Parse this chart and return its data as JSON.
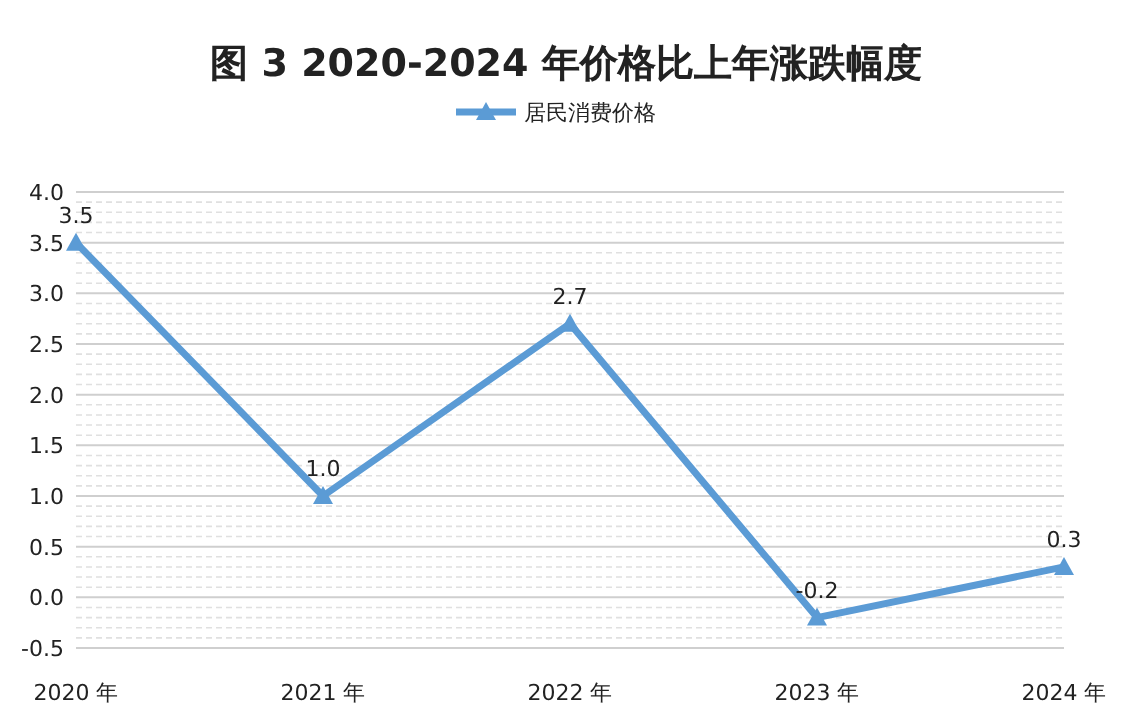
{
  "chart_data": {
    "type": "line",
    "title": "图 3  2020-2024 年价格比上年涨跌幅度",
    "categories": [
      "2020 年",
      "2021 年",
      "2022 年",
      "2023 年",
      "2024 年"
    ],
    "series": [
      {
        "name": "居民消费价格",
        "color": "#5b9bd5",
        "values": [
          3.5,
          1.0,
          2.7,
          -0.2,
          0.3
        ],
        "value_labels": [
          "3.5",
          "1.0",
          "2.7",
          "-0.2",
          "0.3"
        ]
      }
    ],
    "ylim": [
      -0.5,
      4.0
    ],
    "yticks": [
      {
        "value": -0.5,
        "label": "-0.5"
      },
      {
        "value": 0,
        "label": "0.0"
      },
      {
        "value": 0.5,
        "label": "0.5"
      },
      {
        "value": 1,
        "label": "1.0"
      },
      {
        "value": 1.5,
        "label": "1.5"
      },
      {
        "value": 2,
        "label": "2.0"
      },
      {
        "value": 2.5,
        "label": "2.5"
      },
      {
        "value": 3,
        "label": "3.0"
      },
      {
        "value": 3.5,
        "label": "3.5"
      },
      {
        "value": 4,
        "label": "4.0"
      }
    ],
    "grid": true,
    "legend": "top",
    "marker": "triangle",
    "line_style": "solid"
  }
}
